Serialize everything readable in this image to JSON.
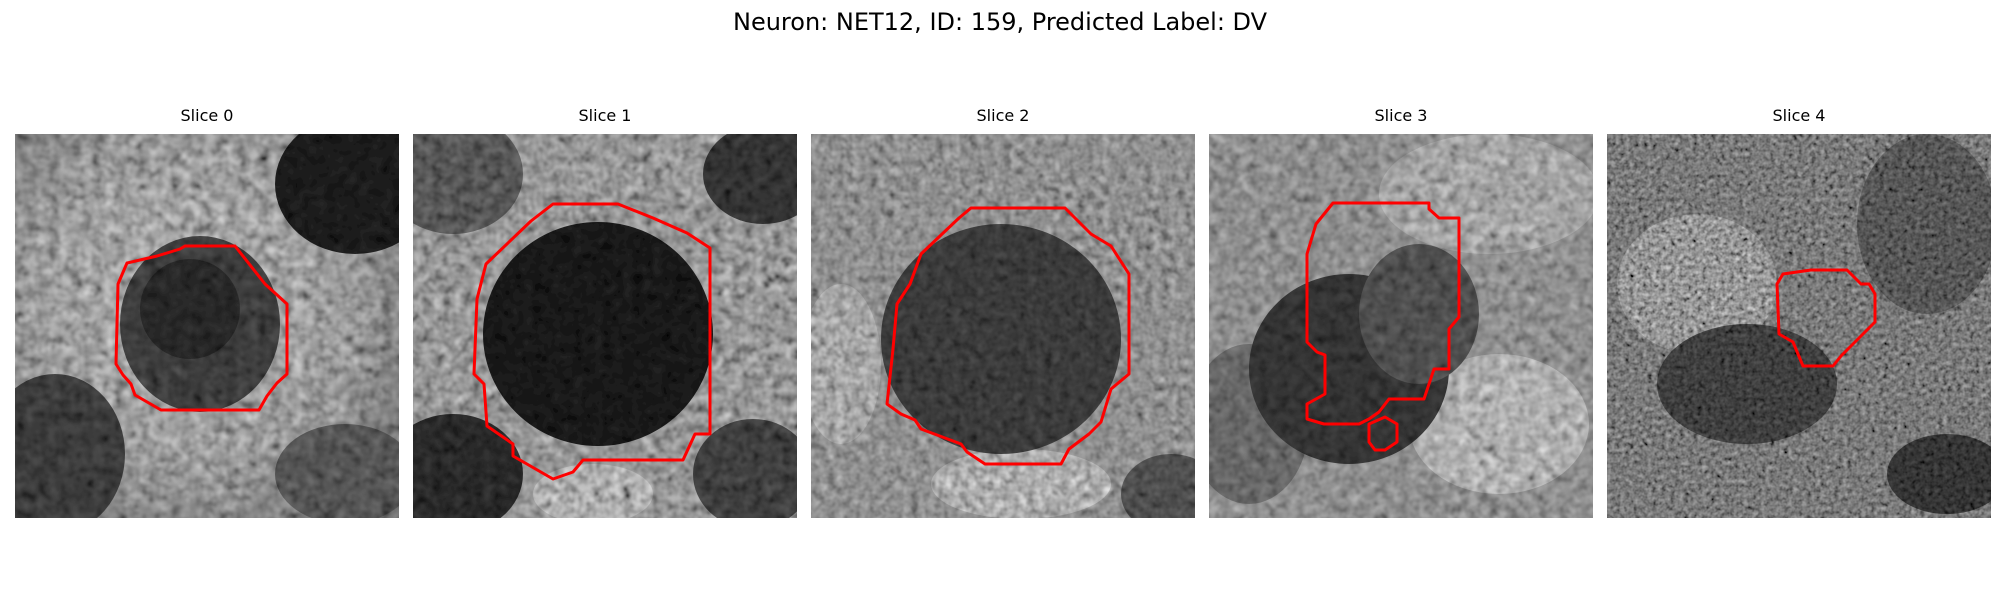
{
  "figure": {
    "title": "Neuron: NET12, ID: 159, Predicted Label: DV"
  },
  "panels": [
    {
      "title": "Slice 0"
    },
    {
      "title": "Slice 1"
    },
    {
      "title": "Slice 2"
    },
    {
      "title": "Slice 3"
    },
    {
      "title": "Slice 4"
    }
  ],
  "style": {
    "contour_color": "#ff0000",
    "colormap": "gray"
  }
}
